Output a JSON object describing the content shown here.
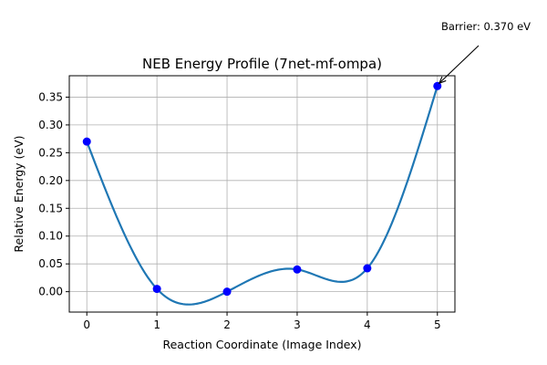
{
  "chart_data": {
    "type": "line",
    "title": "NEB Energy Profile (7net-mf-ompa)",
    "xlabel": "Reaction Coordinate (Image Index)",
    "ylabel": "Relative Energy (eV)",
    "xlim": [
      -0.25,
      5.25
    ],
    "ylim": [
      -0.0367,
      0.3885
    ],
    "x_ticks": [
      0,
      1,
      2,
      3,
      4,
      5
    ],
    "x_tick_labels": [
      "0",
      "1",
      "2",
      "3",
      "4",
      "5"
    ],
    "y_ticks": [
      0.0,
      0.05,
      0.1,
      0.15,
      0.2,
      0.25,
      0.3,
      0.35
    ],
    "y_tick_labels": [
      "0.00",
      "0.05",
      "0.10",
      "0.15",
      "0.20",
      "0.25",
      "0.30",
      "0.35"
    ],
    "grid": true,
    "series": [
      {
        "style": "smooth-line-with-markers",
        "x": [
          0,
          1,
          2,
          3,
          4,
          5
        ],
        "y": [
          0.27,
          0.005,
          0.0,
          0.04,
          0.042,
          0.37
        ]
      }
    ],
    "annotations": [
      {
        "text": "Barrier: 0.370 eV",
        "x": 5,
        "y": 0.37,
        "arrow": true
      }
    ],
    "colors": {
      "line": "#1f77b4",
      "marker": "#0000ff",
      "grid": "#b0b0b0",
      "axes": "#000000"
    }
  }
}
